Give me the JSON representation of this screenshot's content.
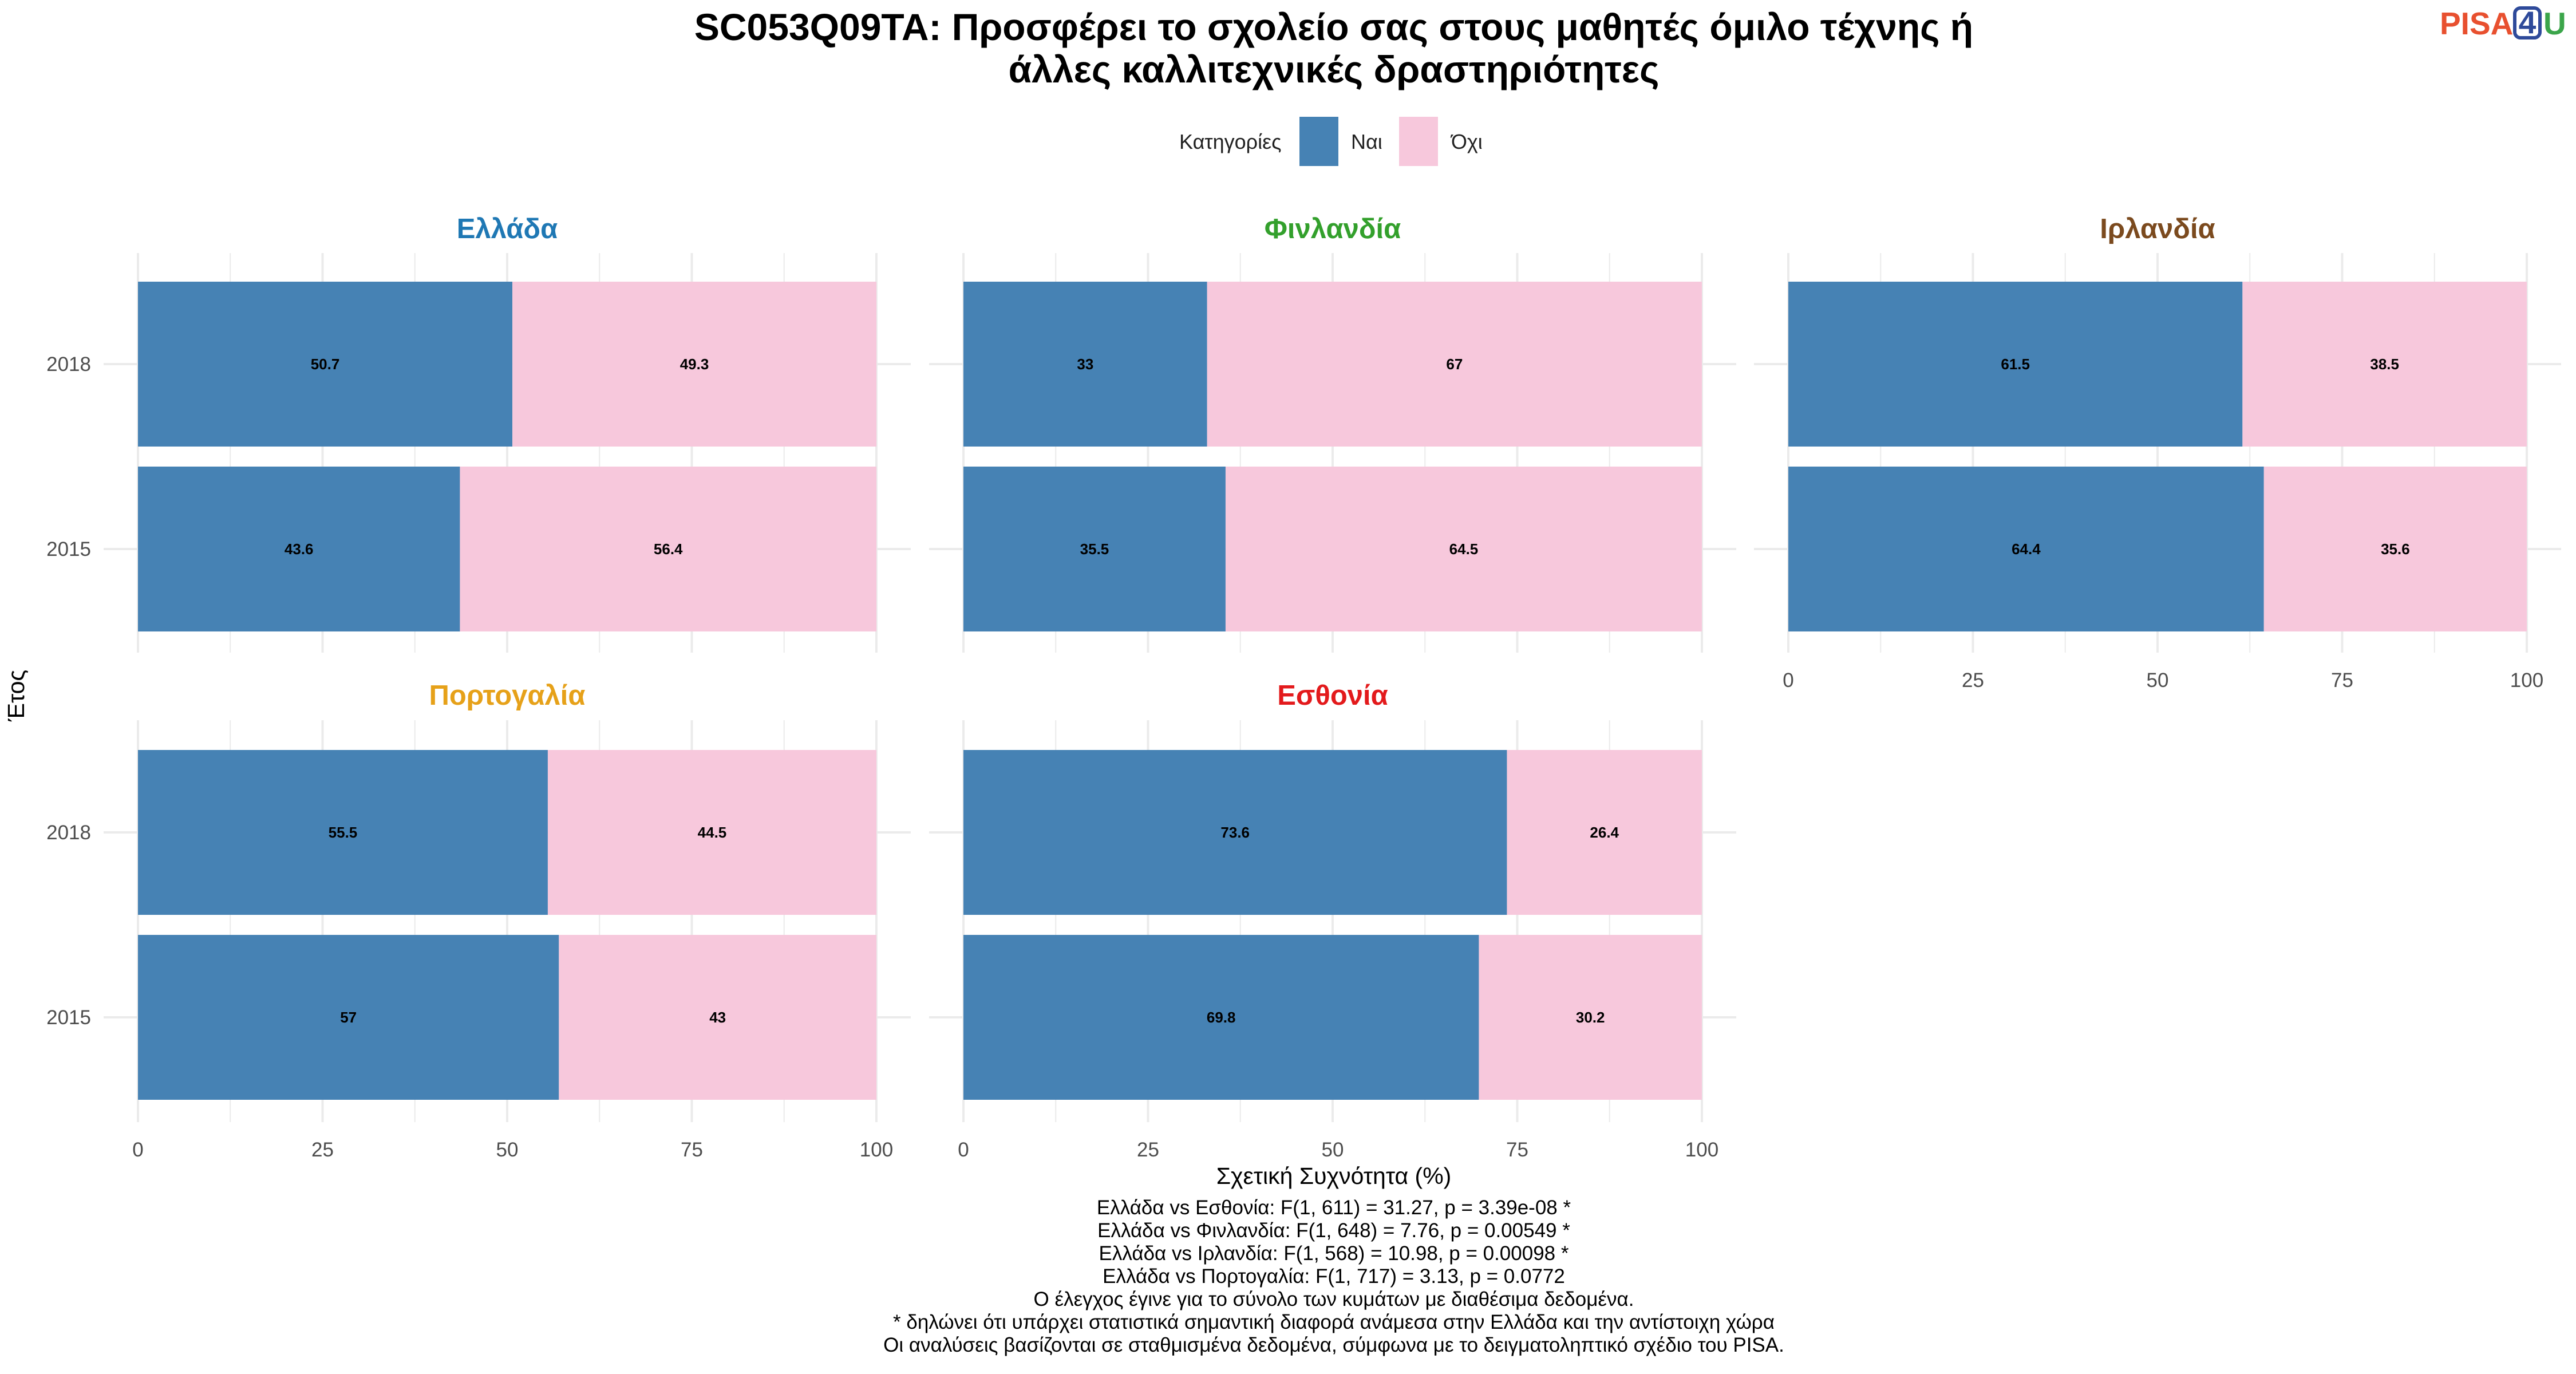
{
  "chart_data": {
    "type": "bar",
    "orientation": "horizontal",
    "stacked": true,
    "title": "SC053Q09TA: Προσφέρει το σχολείο σας στους μαθητές όμιλο τέχνης ή άλλες καλλιτεχνικές δραστηριότητες",
    "title_lines": [
      "SC053Q09TA: Προσφέρει το σχολείο σας στους μαθητές όμιλο τέχνης ή",
      "άλλες καλλιτεχνικές δραστηριότητες"
    ],
    "legend": {
      "title": "Κατηγορίες",
      "position": "top",
      "entries": [
        {
          "name": "Ναι",
          "color": "#4682B4"
        },
        {
          "name": "Όχι",
          "color": "#F7C8DC"
        }
      ]
    },
    "xlabel": "Σχετική Συχνότητα (%)",
    "ylabel": "Έτος",
    "xlim": [
      0,
      100
    ],
    "x_ticks": [
      0,
      25,
      50,
      75,
      100
    ],
    "categories": [
      "2018",
      "2015"
    ],
    "grid": true,
    "facets": [
      {
        "name": "Ελλάδα",
        "title_color": "#1F78B4",
        "series": [
          {
            "name": "Ναι",
            "values": [
              50.7,
              43.6
            ]
          },
          {
            "name": "Όχι",
            "values": [
              49.3,
              56.4
            ]
          }
        ],
        "labels": {
          "yes": [
            "50.7",
            "43.6"
          ],
          "no": [
            "49.3",
            "56.4"
          ]
        }
      },
      {
        "name": "Φινλανδία",
        "title_color": "#33A02C",
        "series": [
          {
            "name": "Ναι",
            "values": [
              33,
              35.5
            ]
          },
          {
            "name": "Όχι",
            "values": [
              67,
              64.5
            ]
          }
        ],
        "labels": {
          "yes": [
            "33",
            "35.5"
          ],
          "no": [
            "67",
            "64.5"
          ]
        }
      },
      {
        "name": "Ιρλανδία",
        "title_color": "#7B4A1E",
        "series": [
          {
            "name": "Ναι",
            "values": [
              61.5,
              64.4
            ]
          },
          {
            "name": "Όχι",
            "values": [
              38.5,
              35.6
            ]
          }
        ],
        "labels": {
          "yes": [
            "61.5",
            "64.4"
          ],
          "no": [
            "38.5",
            "35.6"
          ]
        }
      },
      {
        "name": "Πορτογαλία",
        "title_color": "#E6A119",
        "series": [
          {
            "name": "Ναι",
            "values": [
              55.5,
              57
            ]
          },
          {
            "name": "Όχι",
            "values": [
              44.5,
              43
            ]
          }
        ],
        "labels": {
          "yes": [
            "55.5",
            "57"
          ],
          "no": [
            "44.5",
            "43"
          ]
        }
      },
      {
        "name": "Εσθονία",
        "title_color": "#E31A1C",
        "series": [
          {
            "name": "Ναι",
            "values": [
              73.6,
              69.8
            ]
          },
          {
            "name": "Όχι",
            "values": [
              26.4,
              30.2
            ]
          }
        ],
        "labels": {
          "yes": [
            "73.6",
            "69.8"
          ],
          "no": [
            "26.4",
            "30.2"
          ]
        }
      }
    ],
    "notes": [
      "Ελλάδα vs Εσθονία: F(1, 611) = 31.27, p = 3.39e-08 *",
      "Ελλάδα vs Φινλανδία: F(1, 648) = 7.76, p = 0.00549 *",
      "Ελλάδα vs Ιρλανδία: F(1, 568) = 10.98, p = 0.00098 *",
      "Ελλάδα vs Πορτογαλία: F(1, 717) = 3.13, p = 0.0772",
      "Ο έλεγχος έγινε για το σύνολο των κυμάτων με διαθέσιμα δεδομένα.",
      "* δηλώνει ότι υπάρχει στατιστικά σημαντική διαφορά ανάμεσα στην Ελλάδα και την αντίστοιχη χώρα",
      "Οι αναλύσεις βασίζονται σε σταθμισμένα δεδομένα, σύμφωνα με το δειγματοληπτικό σχέδιο του PISA."
    ]
  },
  "logo": {
    "text_a": "PISA",
    "text_b": "4",
    "text_c": "U",
    "color_a": "#E8502F",
    "color_b": "#2E4A9A",
    "color_c": "#3BA54A"
  }
}
